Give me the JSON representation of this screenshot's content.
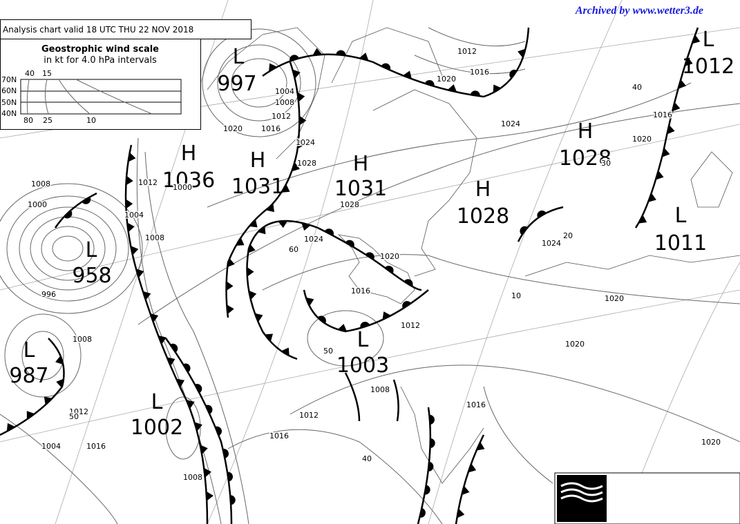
{
  "header": {
    "archive": "Archived by www.wetter3.de",
    "title": "Analysis chart  valid 18 UTC THU 22  NOV 2018"
  },
  "wind_scale": {
    "title": "Geostrophic wind scale",
    "subtitle": "in kt for 4.0 hPa intervals",
    "latitudes": [
      "70N",
      "60N",
      "50N",
      "40N"
    ],
    "top_speeds": [
      40,
      15
    ],
    "bottom_speeds": [
      80,
      25,
      10
    ]
  },
  "systems": [
    {
      "kind": "L",
      "value": 997
    },
    {
      "kind": "H",
      "value": 1036
    },
    {
      "kind": "H",
      "value": 1031
    },
    {
      "kind": "L",
      "value": 958
    },
    {
      "kind": "H",
      "value": 1031
    },
    {
      "kind": "H",
      "value": 1028
    },
    {
      "kind": "H",
      "value": 1028
    },
    {
      "kind": "L",
      "value": 1012
    },
    {
      "kind": "L",
      "value": 1011
    },
    {
      "kind": "L",
      "value": 987
    },
    {
      "kind": "L",
      "value": 1002
    },
    {
      "kind": "L",
      "value": 1003
    }
  ],
  "isobar_labels": [
    1012,
    1016,
    1020,
    1024,
    1004,
    1008,
    1012,
    1016,
    1020,
    1024,
    1028,
    1028,
    1024,
    1020,
    1016,
    1012,
    1016,
    1020,
    1024,
    1020,
    1020,
    1020,
    1008,
    1000,
    996,
    1008,
    1004,
    1012,
    1000,
    1008,
    1012,
    1016,
    1016,
    1008,
    1004,
    1012,
    1016,
    1008,
    60,
    50,
    40,
    10,
    20,
    30,
    40,
    50
  ]
}
